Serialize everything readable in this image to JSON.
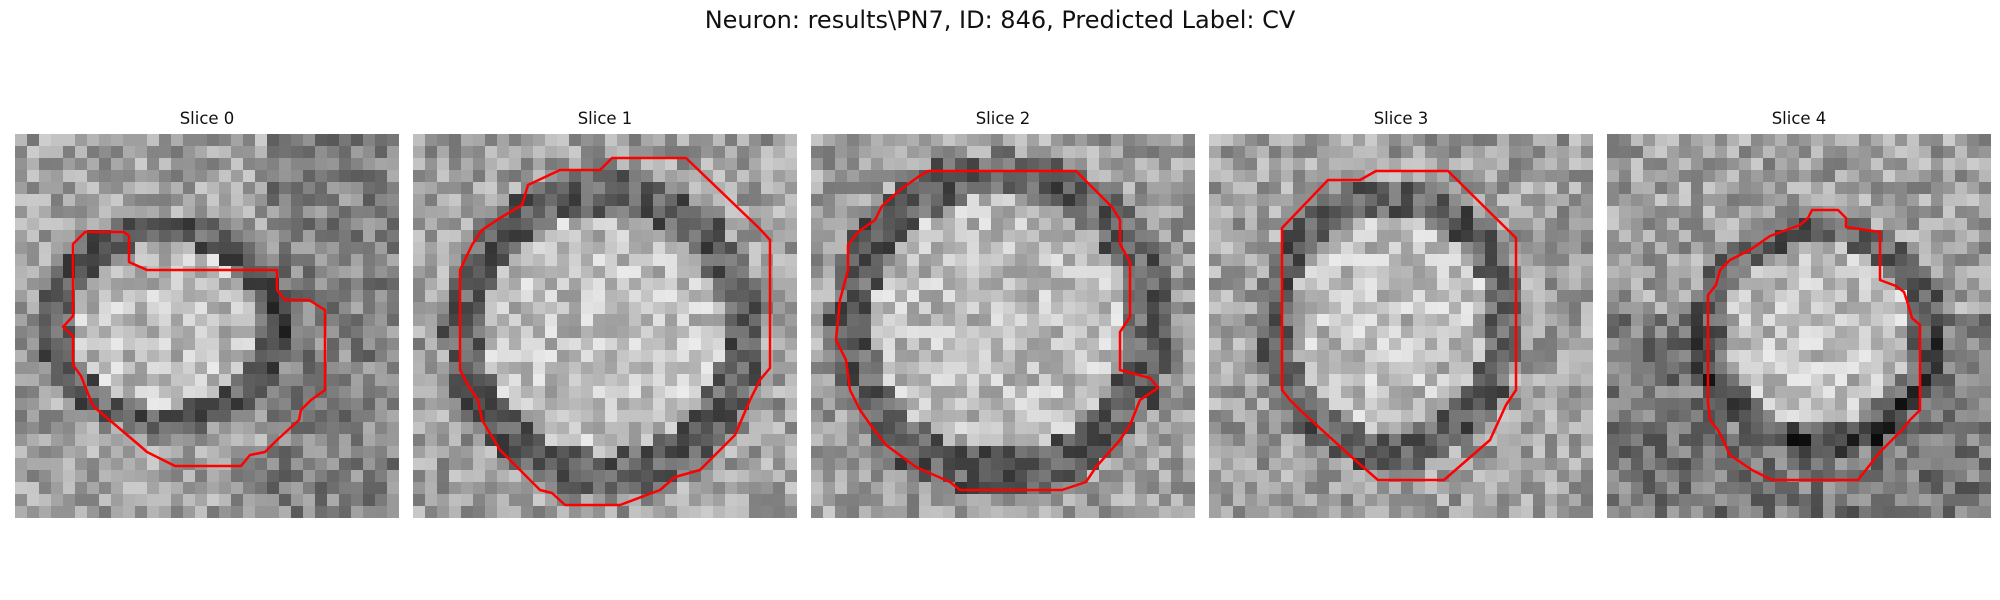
{
  "figure": {
    "title": "Neuron: results\\PN7, ID: 846, Predicted Label: CV"
  },
  "colors": {
    "contour": "#ff0000",
    "background": "#ffffff"
  },
  "panels": [
    {
      "title": "Slice 0",
      "icon": "grayscale-em-patch-with-red-contour"
    },
    {
      "title": "Slice 1",
      "icon": "grayscale-em-patch-with-red-contour"
    },
    {
      "title": "Slice 2",
      "icon": "grayscale-em-patch-with-red-contour"
    },
    {
      "title": "Slice 3",
      "icon": "grayscale-em-patch-with-red-contour"
    },
    {
      "title": "Slice 4",
      "icon": "grayscale-em-patch-with-red-contour"
    }
  ]
}
